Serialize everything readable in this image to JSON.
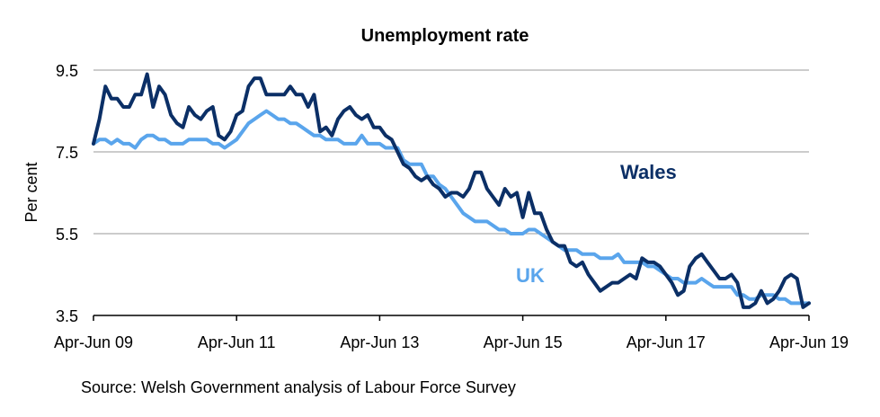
{
  "chart_data": {
    "type": "line",
    "title": "Unemployment rate",
    "ylabel": "Per cent",
    "xlabel": "",
    "ylim": [
      3.5,
      9.5
    ],
    "yticks": [
      "3.5",
      "5.5",
      "7.5",
      "9.5"
    ],
    "xticks": [
      "Apr-Jun 09",
      "Apr-Jun 11",
      "Apr-Jun 13",
      "Apr-Jun 15",
      "Apr-Jun 17",
      "Apr-Jun 19"
    ],
    "grid": "horizontal",
    "source": "Source: Welsh Government analysis of Labour Force Survey",
    "series": [
      {
        "name": "Wales",
        "color": "#0b2f66",
        "values": [
          7.7,
          8.3,
          9.1,
          8.8,
          8.8,
          8.6,
          8.6,
          8.9,
          8.9,
          9.4,
          8.6,
          9.1,
          8.9,
          8.4,
          8.2,
          8.1,
          8.6,
          8.4,
          8.3,
          8.5,
          8.6,
          7.9,
          7.8,
          8.0,
          8.4,
          8.5,
          9.1,
          9.3,
          9.3,
          8.9,
          8.9,
          8.9,
          8.9,
          9.1,
          8.9,
          8.9,
          8.6,
          8.9,
          8.0,
          8.1,
          7.9,
          8.3,
          8.5,
          8.6,
          8.4,
          8.3,
          8.4,
          8.1,
          8.1,
          7.9,
          7.8,
          7.5,
          7.2,
          7.1,
          6.9,
          6.8,
          6.9,
          6.7,
          6.6,
          6.4,
          6.5,
          6.5,
          6.4,
          6.6,
          7.0,
          7.0,
          6.6,
          6.4,
          6.2,
          6.6,
          6.4,
          6.5,
          5.9,
          6.5,
          6.0,
          6.0,
          5.6,
          5.3,
          5.2,
          5.2,
          4.8,
          4.7,
          4.8,
          4.5,
          4.3,
          4.1,
          4.2,
          4.3,
          4.3,
          4.4,
          4.5,
          4.4,
          4.9,
          4.8,
          4.8,
          4.7,
          4.5,
          4.3,
          4.0,
          4.1,
          4.7,
          4.9,
          5.0,
          4.8,
          4.6,
          4.4,
          4.4,
          4.5,
          4.3,
          3.7,
          3.7,
          3.8,
          4.1,
          3.8,
          3.9,
          4.1,
          4.4,
          4.5,
          4.4,
          3.7,
          3.8
        ]
      },
      {
        "name": "UK",
        "color": "#5aa5ec",
        "values": [
          7.7,
          7.8,
          7.8,
          7.7,
          7.8,
          7.7,
          7.7,
          7.6,
          7.8,
          7.9,
          7.9,
          7.8,
          7.8,
          7.7,
          7.7,
          7.7,
          7.8,
          7.8,
          7.8,
          7.8,
          7.7,
          7.7,
          7.6,
          7.7,
          7.8,
          8.0,
          8.2,
          8.3,
          8.4,
          8.5,
          8.4,
          8.3,
          8.3,
          8.2,
          8.2,
          8.1,
          8.0,
          7.9,
          7.9,
          7.8,
          7.8,
          7.8,
          7.7,
          7.7,
          7.7,
          7.9,
          7.7,
          7.7,
          7.7,
          7.6,
          7.6,
          7.6,
          7.3,
          7.2,
          7.2,
          7.2,
          6.9,
          6.9,
          6.7,
          6.6,
          6.4,
          6.2,
          6.0,
          5.9,
          5.8,
          5.8,
          5.8,
          5.7,
          5.6,
          5.6,
          5.5,
          5.5,
          5.5,
          5.6,
          5.6,
          5.5,
          5.4,
          5.3,
          5.2,
          5.1,
          5.1,
          5.1,
          5.0,
          5.0,
          5.0,
          4.9,
          4.9,
          4.9,
          5.0,
          4.8,
          4.8,
          4.8,
          4.8,
          4.7,
          4.7,
          4.6,
          4.5,
          4.4,
          4.4,
          4.3,
          4.3,
          4.3,
          4.4,
          4.3,
          4.2,
          4.2,
          4.2,
          4.2,
          4.0,
          4.0,
          3.9,
          3.9,
          4.0,
          4.0,
          4.0,
          3.9,
          3.9,
          3.8,
          3.8,
          3.8,
          3.8
        ]
      }
    ],
    "annotations": [
      {
        "text": "Wales",
        "series": "Wales",
        "color": "#0b2f66"
      },
      {
        "text": "UK",
        "series": "UK",
        "color": "#5aa5ec"
      }
    ]
  }
}
